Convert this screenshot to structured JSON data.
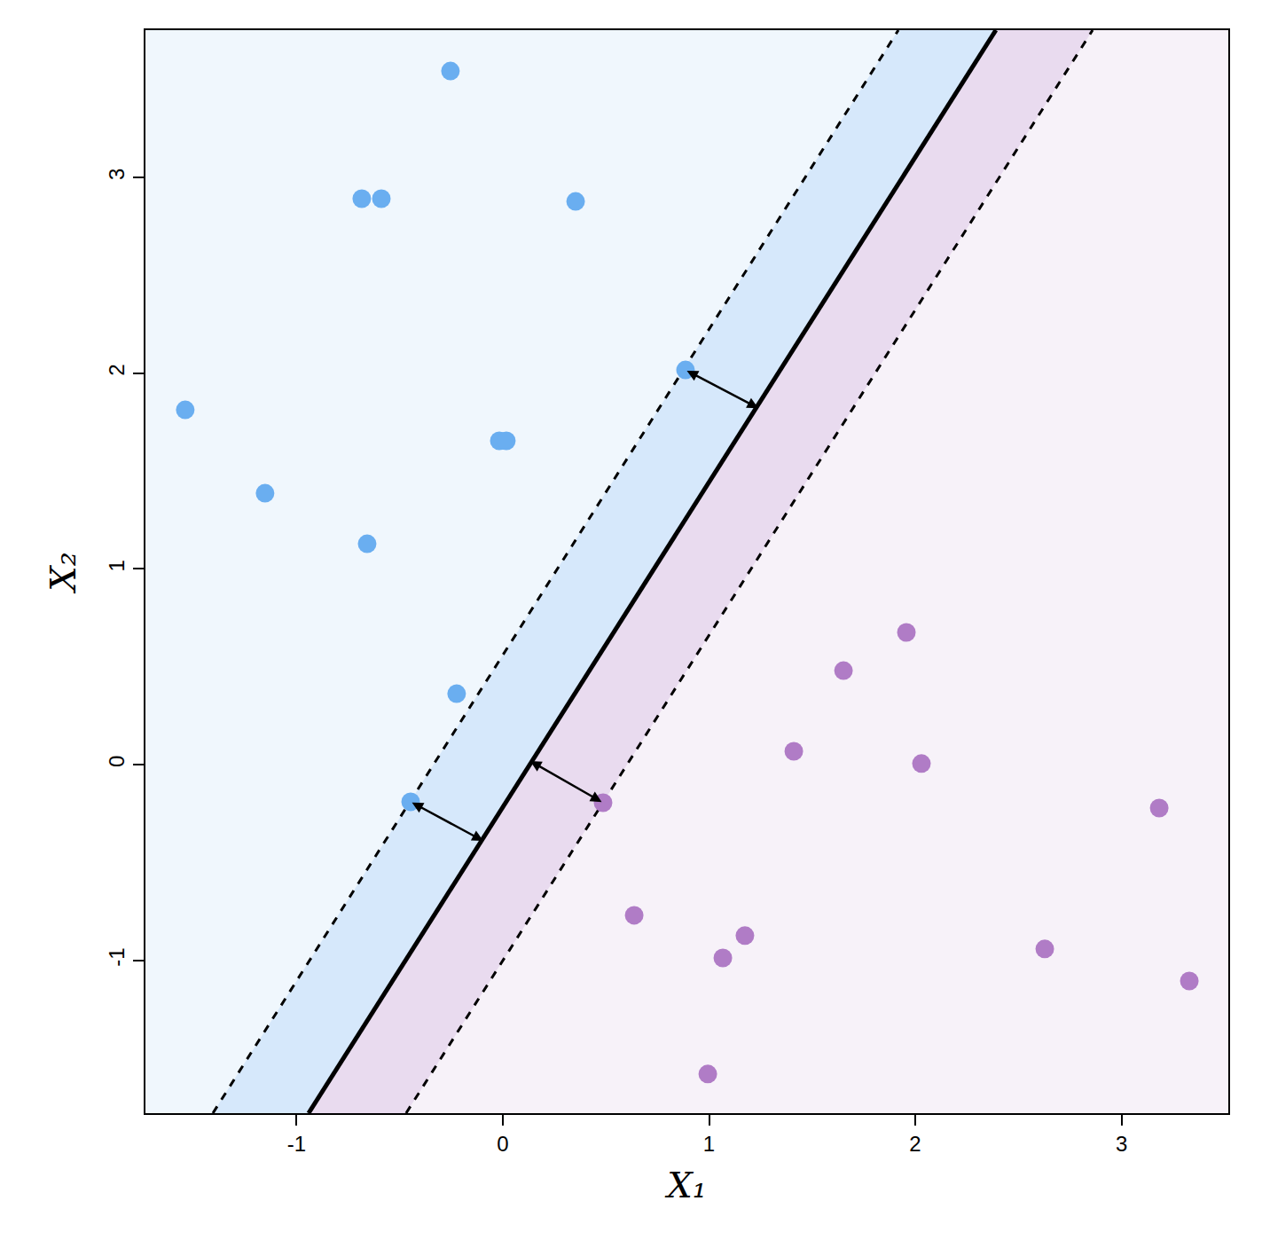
{
  "chart_data": {
    "type": "scatter",
    "x_label": "X₁",
    "y_label": "X₂",
    "xlim": [
      -1.733,
      3.518
    ],
    "ylim": [
      -1.781,
      3.752
    ],
    "xticks": [
      -1,
      0,
      1,
      2,
      3
    ],
    "yticks": [
      -1,
      0,
      1,
      2,
      3
    ],
    "grid": false,
    "series": [
      {
        "type": "scatter",
        "color": "#6aaef0",
        "marker": "circle",
        "x": [
          -0.254,
          -0.684,
          -0.589,
          0.353,
          0.886,
          -1.54,
          -1.153,
          -0.658,
          -0.017,
          0.017,
          -0.224,
          -0.447
        ],
        "y": [
          3.543,
          2.891,
          2.891,
          2.877,
          2.016,
          1.812,
          1.386,
          1.128,
          1.654,
          1.654,
          0.362,
          -0.19
        ]
      },
      {
        "type": "scatter",
        "color": "#b07cc6",
        "marker": "circle",
        "x": [
          1.957,
          1.652,
          1.411,
          2.03,
          0.486,
          3.183,
          0.637,
          1.174,
          1.067,
          2.628,
          3.329,
          0.994
        ],
        "y": [
          0.675,
          0.48,
          0.068,
          0.005,
          -0.195,
          -0.222,
          -0.77,
          -0.874,
          -0.988,
          -0.942,
          -1.106,
          -1.581
        ]
      },
      {
        "type": "line",
        "color": "#000000",
        "line_style": "dashed",
        "x": [
          -1.406,
          1.918
        ],
        "y": [
          -1.781,
          3.752
        ]
      },
      {
        "type": "line",
        "color": "#000000",
        "line_style": "solid",
        "x": [
          -0.942,
          2.391
        ],
        "y": [
          -1.781,
          3.752
        ]
      },
      {
        "type": "line",
        "color": "#000000",
        "line_style": "dashed",
        "x": [
          -0.469,
          2.86
        ],
        "y": [
          -1.781,
          3.752
        ]
      }
    ],
    "arrows": [
      {
        "x0": 0.886,
        "y0": 2.016,
        "x1": 1.239,
        "y1": 1.821
      },
      {
        "x0": -0.447,
        "y0": -0.19,
        "x1": -0.095,
        "y1": -0.39
      },
      {
        "x0": 0.486,
        "y0": -0.195,
        "x1": 0.133,
        "y1": 0.018
      }
    ]
  }
}
